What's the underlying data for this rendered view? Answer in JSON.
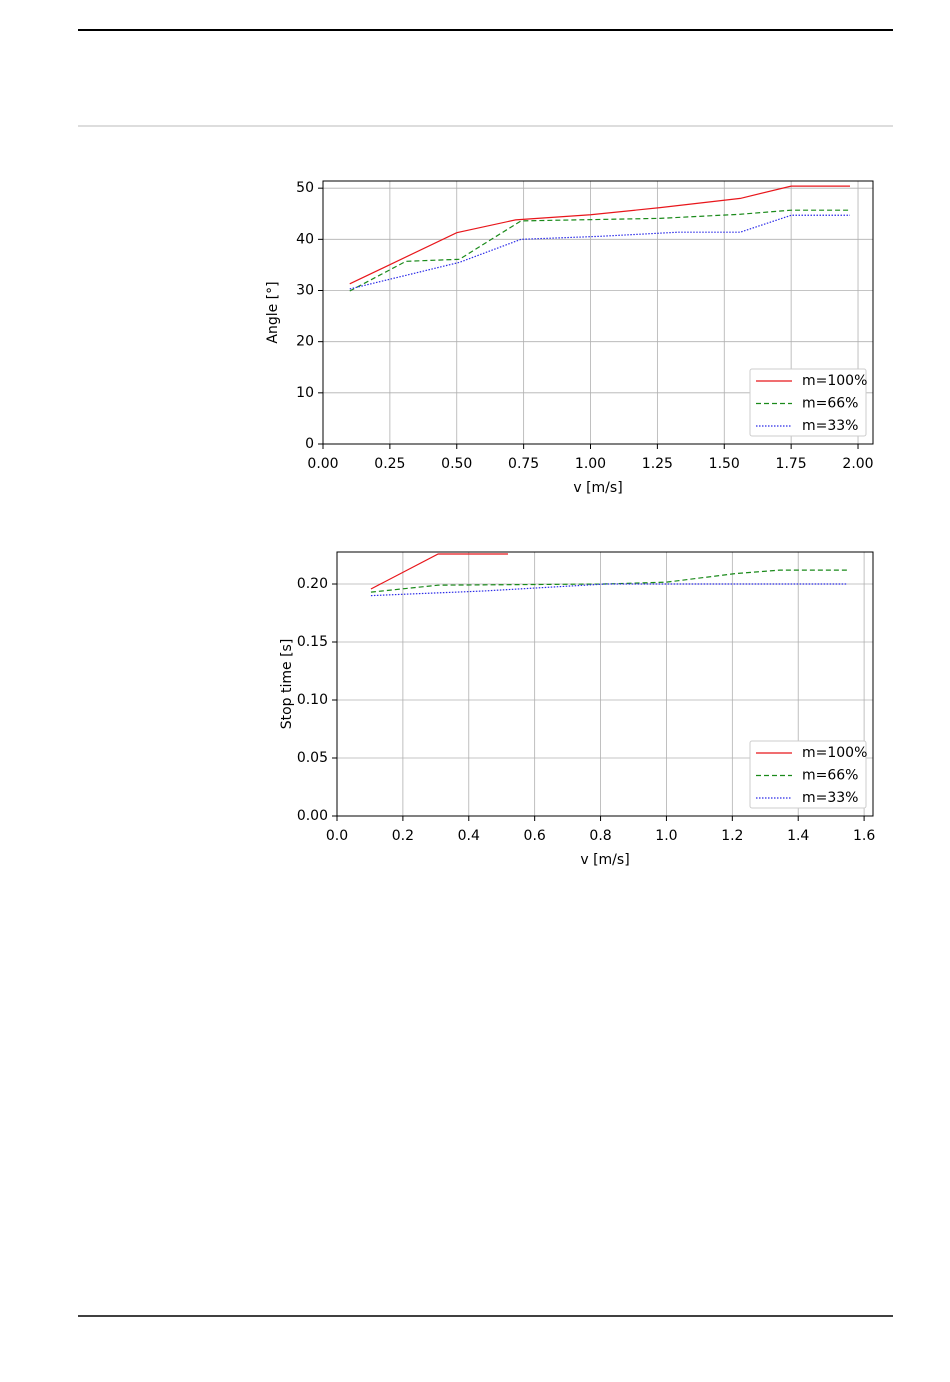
{
  "chart_data": [
    {
      "type": "line",
      "xlabel": "v [m/s]",
      "ylabel": "Angle [°]",
      "xlim": [
        0,
        2.056
      ],
      "ylim": [
        0,
        51.4
      ],
      "xticks": [
        {
          "value": 0,
          "label": "0.00"
        },
        0.25,
        {
          "value": 0.5,
          "label": "0.50"
        },
        0.75,
        {
          "value": 1,
          "label": "1.00"
        },
        1.25,
        {
          "value": 1.5,
          "label": "1.50"
        },
        1.75,
        {
          "value": 2,
          "label": "2.00"
        }
      ],
      "yticks": [
        0,
        10,
        20,
        30,
        40,
        50
      ],
      "grid": true,
      "legend": "lower right",
      "series": [
        {
          "name": "m=100%",
          "color": "#e8161b",
          "dash": "solid",
          "x": [
            0.1,
            0.5,
            0.72,
            1.0,
            1.26,
            1.56,
            1.75,
            1.97
          ],
          "values": [
            31.3,
            41.3,
            43.8,
            44.8,
            46.2,
            48.0,
            50.4,
            50.4
          ]
        },
        {
          "name": "m=66%",
          "color": "#1a8a1a",
          "dash": "dashed",
          "x": [
            0.1,
            0.31,
            0.51,
            0.74,
            1.26,
            1.56,
            1.75,
            1.97
          ],
          "values": [
            29.9,
            35.7,
            36.1,
            43.6,
            44.1,
            44.9,
            45.7,
            45.7
          ]
        },
        {
          "name": "m=33%",
          "color": "#2a2ae8",
          "dash": "dotted",
          "x": [
            0.1,
            0.51,
            0.74,
            1.04,
            1.33,
            1.56,
            1.75,
            1.97
          ],
          "values": [
            30.3,
            35.5,
            40.0,
            40.6,
            41.4,
            41.4,
            44.7,
            44.7
          ]
        }
      ]
    },
    {
      "type": "line",
      "xlabel": "v [m/s]",
      "ylabel": "Stop time [s]",
      "xlim": [
        0,
        1.627
      ],
      "ylim": [
        0,
        0.2276
      ],
      "xticks": [
        {
          "value": 0,
          "label": "0.0"
        },
        0.2,
        0.4,
        0.6,
        0.8,
        {
          "value": 1,
          "label": "1.0"
        },
        1.2,
        1.4,
        1.6
      ],
      "yticks": [
        {
          "value": 0,
          "label": "0.00"
        },
        {
          "value": 0.05,
          "label": "0.05"
        },
        {
          "value": 0.1,
          "label": "0.10"
        },
        {
          "value": 0.15,
          "label": "0.15"
        },
        {
          "value": 0.2,
          "label": "0.20"
        }
      ],
      "grid": true,
      "legend": "lower right",
      "series": [
        {
          "name": "m=100%",
          "color": "#e8161b",
          "dash": "solid",
          "x": [
            0.103,
            0.307,
            0.519
          ],
          "values": [
            0.1957,
            0.2259,
            0.2259
          ]
        },
        {
          "name": "m=66%",
          "color": "#1a8a1a",
          "dash": "dashed",
          "x": [
            0.103,
            0.307,
            0.81,
            1.0,
            1.21,
            1.345,
            1.55
          ],
          "values": [
            0.193,
            0.199,
            0.2,
            0.2016,
            0.209,
            0.212,
            0.212
          ]
        },
        {
          "name": "m=33%",
          "color": "#2a2ae8",
          "dash": "dotted",
          "x": [
            0.103,
            0.446,
            0.814,
            1.55
          ],
          "values": [
            0.19,
            0.194,
            0.2,
            0.2
          ]
        }
      ]
    }
  ]
}
